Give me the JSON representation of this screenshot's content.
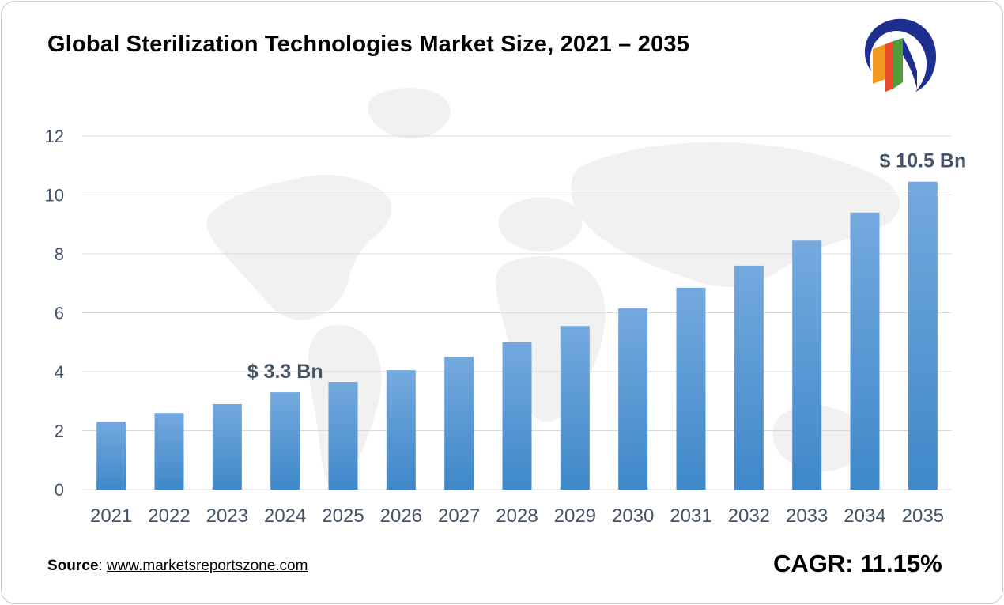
{
  "header": {
    "title": "Global Sterilization Technologies Market Size, 2021 – 2035"
  },
  "logo": {
    "icon": "marketsreportszone-logo",
    "colors": {
      "ring": "#1f2f8f",
      "bar_orange": "#f29a1f",
      "bar_red": "#e84a2b",
      "bar_green": "#4f9e3a"
    }
  },
  "footer": {
    "source_label": "Source",
    "source_sep": ": ",
    "source_link": "www.marketsreportszone.com",
    "cagr_text": "CAGR: 11.15%"
  },
  "chart_data": {
    "type": "bar",
    "title": "Global Sterilization Technologies Market Size, 2021 – 2035",
    "xlabel": "",
    "ylabel": "",
    "categories": [
      "2021",
      "2022",
      "2023",
      "2024",
      "2025",
      "2026",
      "2027",
      "2028",
      "2029",
      "2030",
      "2031",
      "2032",
      "2033",
      "2034",
      "2035"
    ],
    "values": [
      2.3,
      2.6,
      2.9,
      3.3,
      3.65,
      4.05,
      4.5,
      5.0,
      5.55,
      6.15,
      6.85,
      7.6,
      8.45,
      9.4,
      10.45
    ],
    "ylim": [
      0,
      12
    ],
    "yticks": [
      "0",
      "2",
      "4",
      "6",
      "8",
      "10",
      "12"
    ],
    "grid": true,
    "legend": "none",
    "bar_color_top": "#74a9df",
    "bar_color_bottom": "#3f88c9",
    "annotations": [
      {
        "category": "2024",
        "text": "$ 3.3 Bn"
      },
      {
        "category": "2035",
        "text": "$ 10.5 Bn"
      }
    ],
    "annotation_color": "#44546a",
    "tick_color": "#44546a",
    "grid_color": "#d9d9d9"
  }
}
